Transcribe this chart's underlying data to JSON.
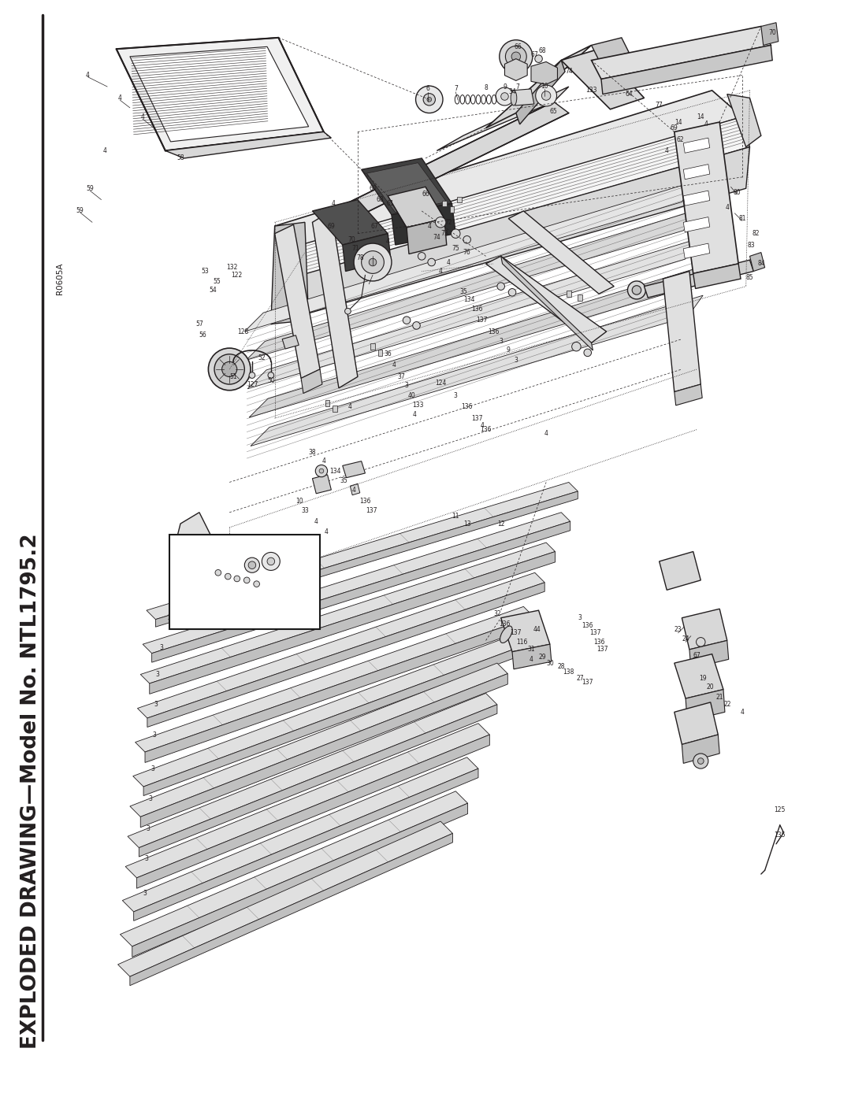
{
  "title": "EXPLODED DRAWING—Model No. NTL1795.2",
  "ref_code": "R0605A",
  "bg_color": "#ffffff",
  "lc": "#231f20",
  "fig_width": 10.8,
  "fig_height": 13.97,
  "dpi": 100
}
